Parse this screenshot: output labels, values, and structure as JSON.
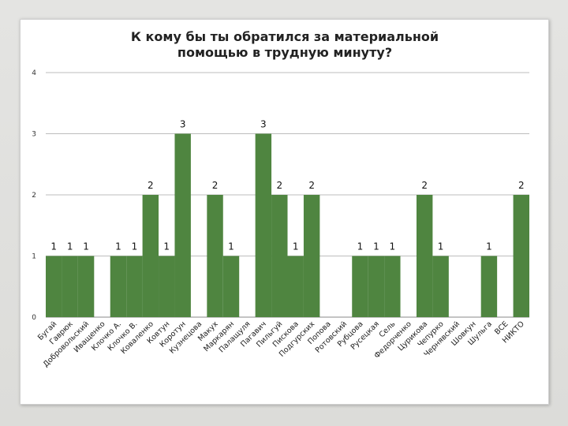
{
  "chart_data": {
    "type": "bar",
    "title": "К кому бы ты обратился за материальной помощью в трудную минуту?",
    "title_lines": [
      "К кому бы ты обратился за материальной",
      "помощью в трудную минуту?"
    ],
    "xlabel": "",
    "ylabel": "",
    "ylim": [
      0,
      4
    ],
    "yticks": [
      0,
      1,
      2,
      3,
      4
    ],
    "grid": true,
    "legend": "none",
    "bar_color": "#4f8540",
    "categories": [
      "Бугай",
      "Гаврюк",
      "Добровольский",
      "Иващенко",
      "Клочко А.",
      "Клочко В.",
      "Коваленко",
      "Ковтун",
      "Коротун",
      "Кузнецова",
      "Макух",
      "Маркарян",
      "Палащуля",
      "Пагавич",
      "Пильгуй",
      "Пискова",
      "Подгурских",
      "Попова",
      "Ротовский",
      "Рубцова",
      "Русецкая",
      "Сель",
      "Федорченко",
      "Цурикова",
      "Чепурко",
      "Чернявский",
      "Шовкун",
      "Шульга",
      "ВСЕ",
      "НИКТО"
    ],
    "values": [
      1,
      1,
      1,
      0,
      1,
      1,
      2,
      1,
      3,
      0,
      2,
      1,
      0,
      3,
      2,
      1,
      2,
      0,
      0,
      1,
      1,
      1,
      0,
      2,
      1,
      0,
      0,
      1,
      0,
      2
    ]
  }
}
